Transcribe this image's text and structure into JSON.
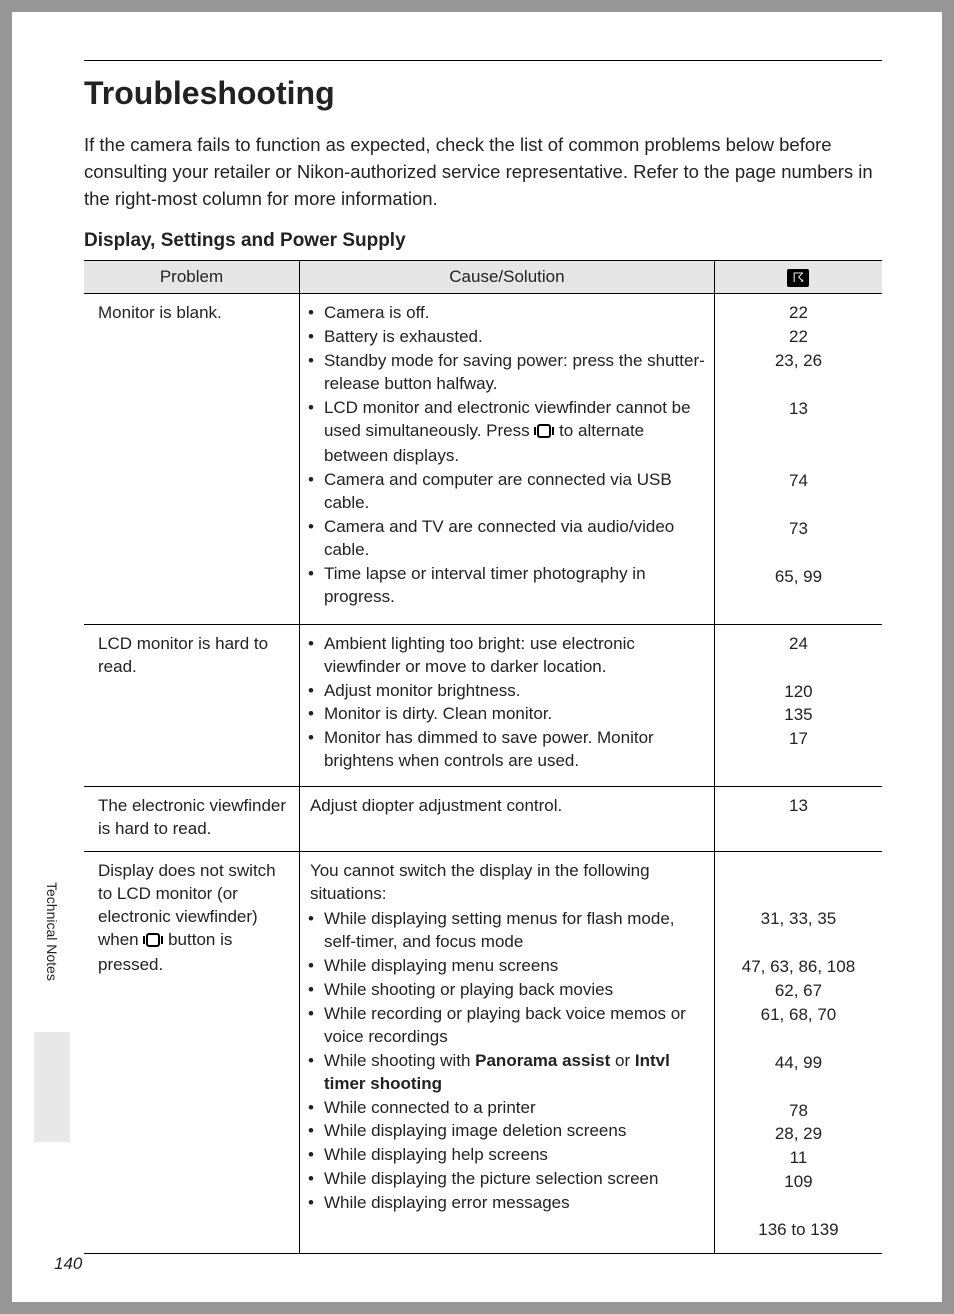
{
  "page_title": "Troubleshooting",
  "intro": "If the camera fails to function as expected, check the list of common problems below before consulting your retailer or Nikon-authorized service representative. Refer to the page numbers in the right-most column for more information.",
  "section_heading": "Display, Settings and Power Supply",
  "side_tab": "Technical Notes",
  "page_number": "140",
  "columns": {
    "problem": "Problem",
    "cause": "Cause/Solution"
  },
  "rows": [
    {
      "problem": "Monitor is blank.",
      "lead": "",
      "items": [
        {
          "text": "Camera is off.",
          "page": "22"
        },
        {
          "text": "Battery is exhausted.",
          "page": "22"
        },
        {
          "text": "Standby mode for saving power: press the shutter-release button halfway.",
          "page": "23, 26"
        },
        {
          "text_before": "LCD monitor and electronic viewfinder cannot be used simultaneously. Press ",
          "icon": true,
          "text_after": " to alternate between displays.",
          "page": "13"
        },
        {
          "text": "Camera and computer are connected via USB cable.",
          "page": "74"
        },
        {
          "text": "Camera and TV are connected via audio/video cable.",
          "page": "73"
        },
        {
          "text": "Time lapse or interval timer photography in progress.",
          "page": "65, 99"
        }
      ]
    },
    {
      "problem": "LCD monitor is hard to read.",
      "lead": "",
      "items": [
        {
          "text": "Ambient lighting too bright: use electronic viewfinder or move to darker location.",
          "page": "24"
        },
        {
          "text": "Adjust monitor brightness.",
          "page": "120"
        },
        {
          "text": "Monitor is dirty. Clean monitor.",
          "page": "135"
        },
        {
          "text": "Monitor has dimmed to save power. Monitor brightens when controls are used.",
          "page": "17"
        }
      ]
    },
    {
      "problem": "The electronic viewfinder is hard to read.",
      "single": "Adjust diopter adjustment control.",
      "single_page": "13"
    },
    {
      "problem_parts": {
        "before": "Display does not switch to LCD monitor (or electronic viewfinder) when ",
        "after": " button is pressed."
      },
      "lead": "You cannot switch the display in the following situations:",
      "items": [
        {
          "text": "While displaying setting menus for flash mode, self-timer, and focus mode",
          "page": "31, 33, 35"
        },
        {
          "text": "While displaying menu screens",
          "page": "47, 63, 86, 108"
        },
        {
          "text": "While shooting or playing back movies",
          "page": "62, 67"
        },
        {
          "text": "While recording or playing back voice memos or voice recordings",
          "page": "61, 68, 70"
        },
        {
          "text_before": "While shooting with ",
          "bold1": "Panorama assist",
          "mid": " or ",
          "bold2": "Intvl timer shooting",
          "page": "44, 99"
        },
        {
          "text": "While connected to a printer",
          "page": "78"
        },
        {
          "text": "While displaying image deletion screens",
          "page": "28, 29"
        },
        {
          "text": "While displaying help screens",
          "page": "11"
        },
        {
          "text": "While displaying the picture selection screen",
          "page": "109"
        },
        {
          "text": "While displaying error messages",
          "page": "136 to 139"
        }
      ]
    }
  ]
}
